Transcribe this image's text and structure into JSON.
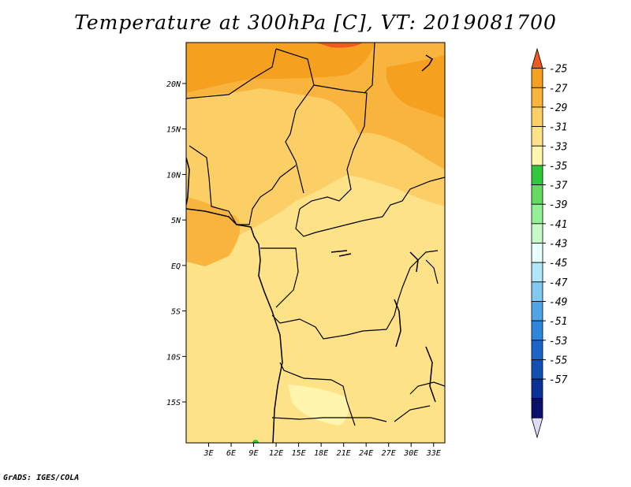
{
  "title": "Temperature at 300hPa [C], VT: 2019081700",
  "footer": "GrADS: IGES/COLA",
  "map": {
    "lat_labels": [
      "20N",
      "15N",
      "10N",
      "5N",
      "EQ",
      "5S",
      "10S",
      "15S"
    ],
    "lon_labels": [
      "3E",
      "6E",
      "9E",
      "12E",
      "15E",
      "18E",
      "21E",
      "24E",
      "27E",
      "30E",
      "33E"
    ],
    "lat_range": [
      -19.5,
      24.5
    ],
    "lon_range": [
      0,
      34.5
    ]
  },
  "colorbar": {
    "labels": [
      "-25",
      "-27",
      "-29",
      "-31",
      "-33",
      "-35",
      "-37",
      "-39",
      "-41",
      "-43",
      "-45",
      "-47",
      "-49",
      "-51",
      "-53",
      "-55",
      "-57"
    ],
    "colors": [
      "#f05a1e",
      "#f5a01e",
      "#f8b43c",
      "#fbcf66",
      "#fde288",
      "#fff5ac",
      "#32c83c",
      "#64dc64",
      "#96f096",
      "#c8fac8",
      "#e6ffff",
      "#afe6f8",
      "#82c8f0",
      "#50a5e6",
      "#2d87dc",
      "#1e64c8",
      "#1450b4",
      "#0a3296",
      "#0a0f6e",
      "#dcdcf5"
    ]
  }
}
